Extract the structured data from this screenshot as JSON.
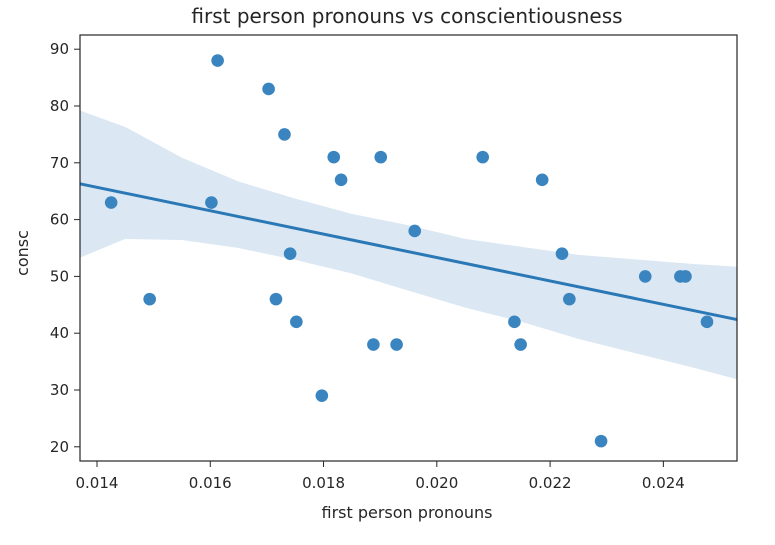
{
  "chart_data": {
    "type": "scatter",
    "title": "first person pronouns vs conscientiousness",
    "xlabel": "first person pronouns",
    "ylabel": "consc",
    "xlim": [
      0.0137,
      0.0253
    ],
    "ylim": [
      17.5,
      92.5
    ],
    "xticks": [
      "0.014",
      "0.016",
      "0.018",
      "0.020",
      "0.022",
      "0.024"
    ],
    "xtick_values": [
      0.014,
      0.016,
      0.018,
      0.02,
      0.022,
      0.024
    ],
    "yticks": [
      "20",
      "30",
      "40",
      "50",
      "60",
      "70",
      "80",
      "90"
    ],
    "ytick_values": [
      20,
      30,
      40,
      50,
      60,
      70,
      80,
      90
    ],
    "grid": false,
    "legend": "none",
    "series": [
      {
        "marker_color": "#3a85c0",
        "points": [
          {
            "x": 0.01425,
            "y": 63
          },
          {
            "x": 0.01493,
            "y": 46
          },
          {
            "x": 0.01602,
            "y": 63
          },
          {
            "x": 0.01613,
            "y": 88
          },
          {
            "x": 0.01703,
            "y": 83
          },
          {
            "x": 0.01716,
            "y": 46
          },
          {
            "x": 0.01731,
            "y": 75
          },
          {
            "x": 0.01741,
            "y": 54
          },
          {
            "x": 0.01752,
            "y": 42
          },
          {
            "x": 0.01797,
            "y": 29
          },
          {
            "x": 0.01818,
            "y": 71
          },
          {
            "x": 0.01831,
            "y": 67
          },
          {
            "x": 0.01888,
            "y": 38
          },
          {
            "x": 0.01901,
            "y": 71
          },
          {
            "x": 0.01929,
            "y": 38
          },
          {
            "x": 0.01961,
            "y": 58
          },
          {
            "x": 0.02081,
            "y": 71
          },
          {
            "x": 0.02137,
            "y": 42
          },
          {
            "x": 0.02148,
            "y": 38
          },
          {
            "x": 0.02186,
            "y": 67
          },
          {
            "x": 0.02221,
            "y": 54
          },
          {
            "x": 0.02234,
            "y": 46
          },
          {
            "x": 0.0229,
            "y": 21
          },
          {
            "x": 0.02368,
            "y": 50
          },
          {
            "x": 0.0243,
            "y": 50
          },
          {
            "x": 0.02439,
            "y": 50
          },
          {
            "x": 0.02477,
            "y": 42
          }
        ]
      }
    ],
    "regression": {
      "line_color": "#2a78b5",
      "band_color": "#dbe7f3",
      "line": [
        {
          "x": 0.0137,
          "y": 66.3
        },
        {
          "x": 0.0253,
          "y": 42.4
        }
      ],
      "band": [
        {
          "x": 0.0137,
          "lo": 53.3,
          "hi": 79.2
        },
        {
          "x": 0.0145,
          "lo": 56.6,
          "hi": 76.3
        },
        {
          "x": 0.0155,
          "lo": 56.4,
          "hi": 70.9
        },
        {
          "x": 0.0165,
          "lo": 55.0,
          "hi": 66.7
        },
        {
          "x": 0.0175,
          "lo": 52.9,
          "hi": 63.7
        },
        {
          "x": 0.0185,
          "lo": 50.5,
          "hi": 61.0
        },
        {
          "x": 0.0195,
          "lo": 47.5,
          "hi": 59.0
        },
        {
          "x": 0.0205,
          "lo": 44.5,
          "hi": 56.6
        },
        {
          "x": 0.0215,
          "lo": 42.0,
          "hi": 55.2
        },
        {
          "x": 0.0225,
          "lo": 39.0,
          "hi": 53.8
        },
        {
          "x": 0.0235,
          "lo": 36.5,
          "hi": 53.0
        },
        {
          "x": 0.0245,
          "lo": 34.0,
          "hi": 52.2
        },
        {
          "x": 0.0253,
          "lo": 31.9,
          "hi": 51.7
        }
      ]
    }
  }
}
